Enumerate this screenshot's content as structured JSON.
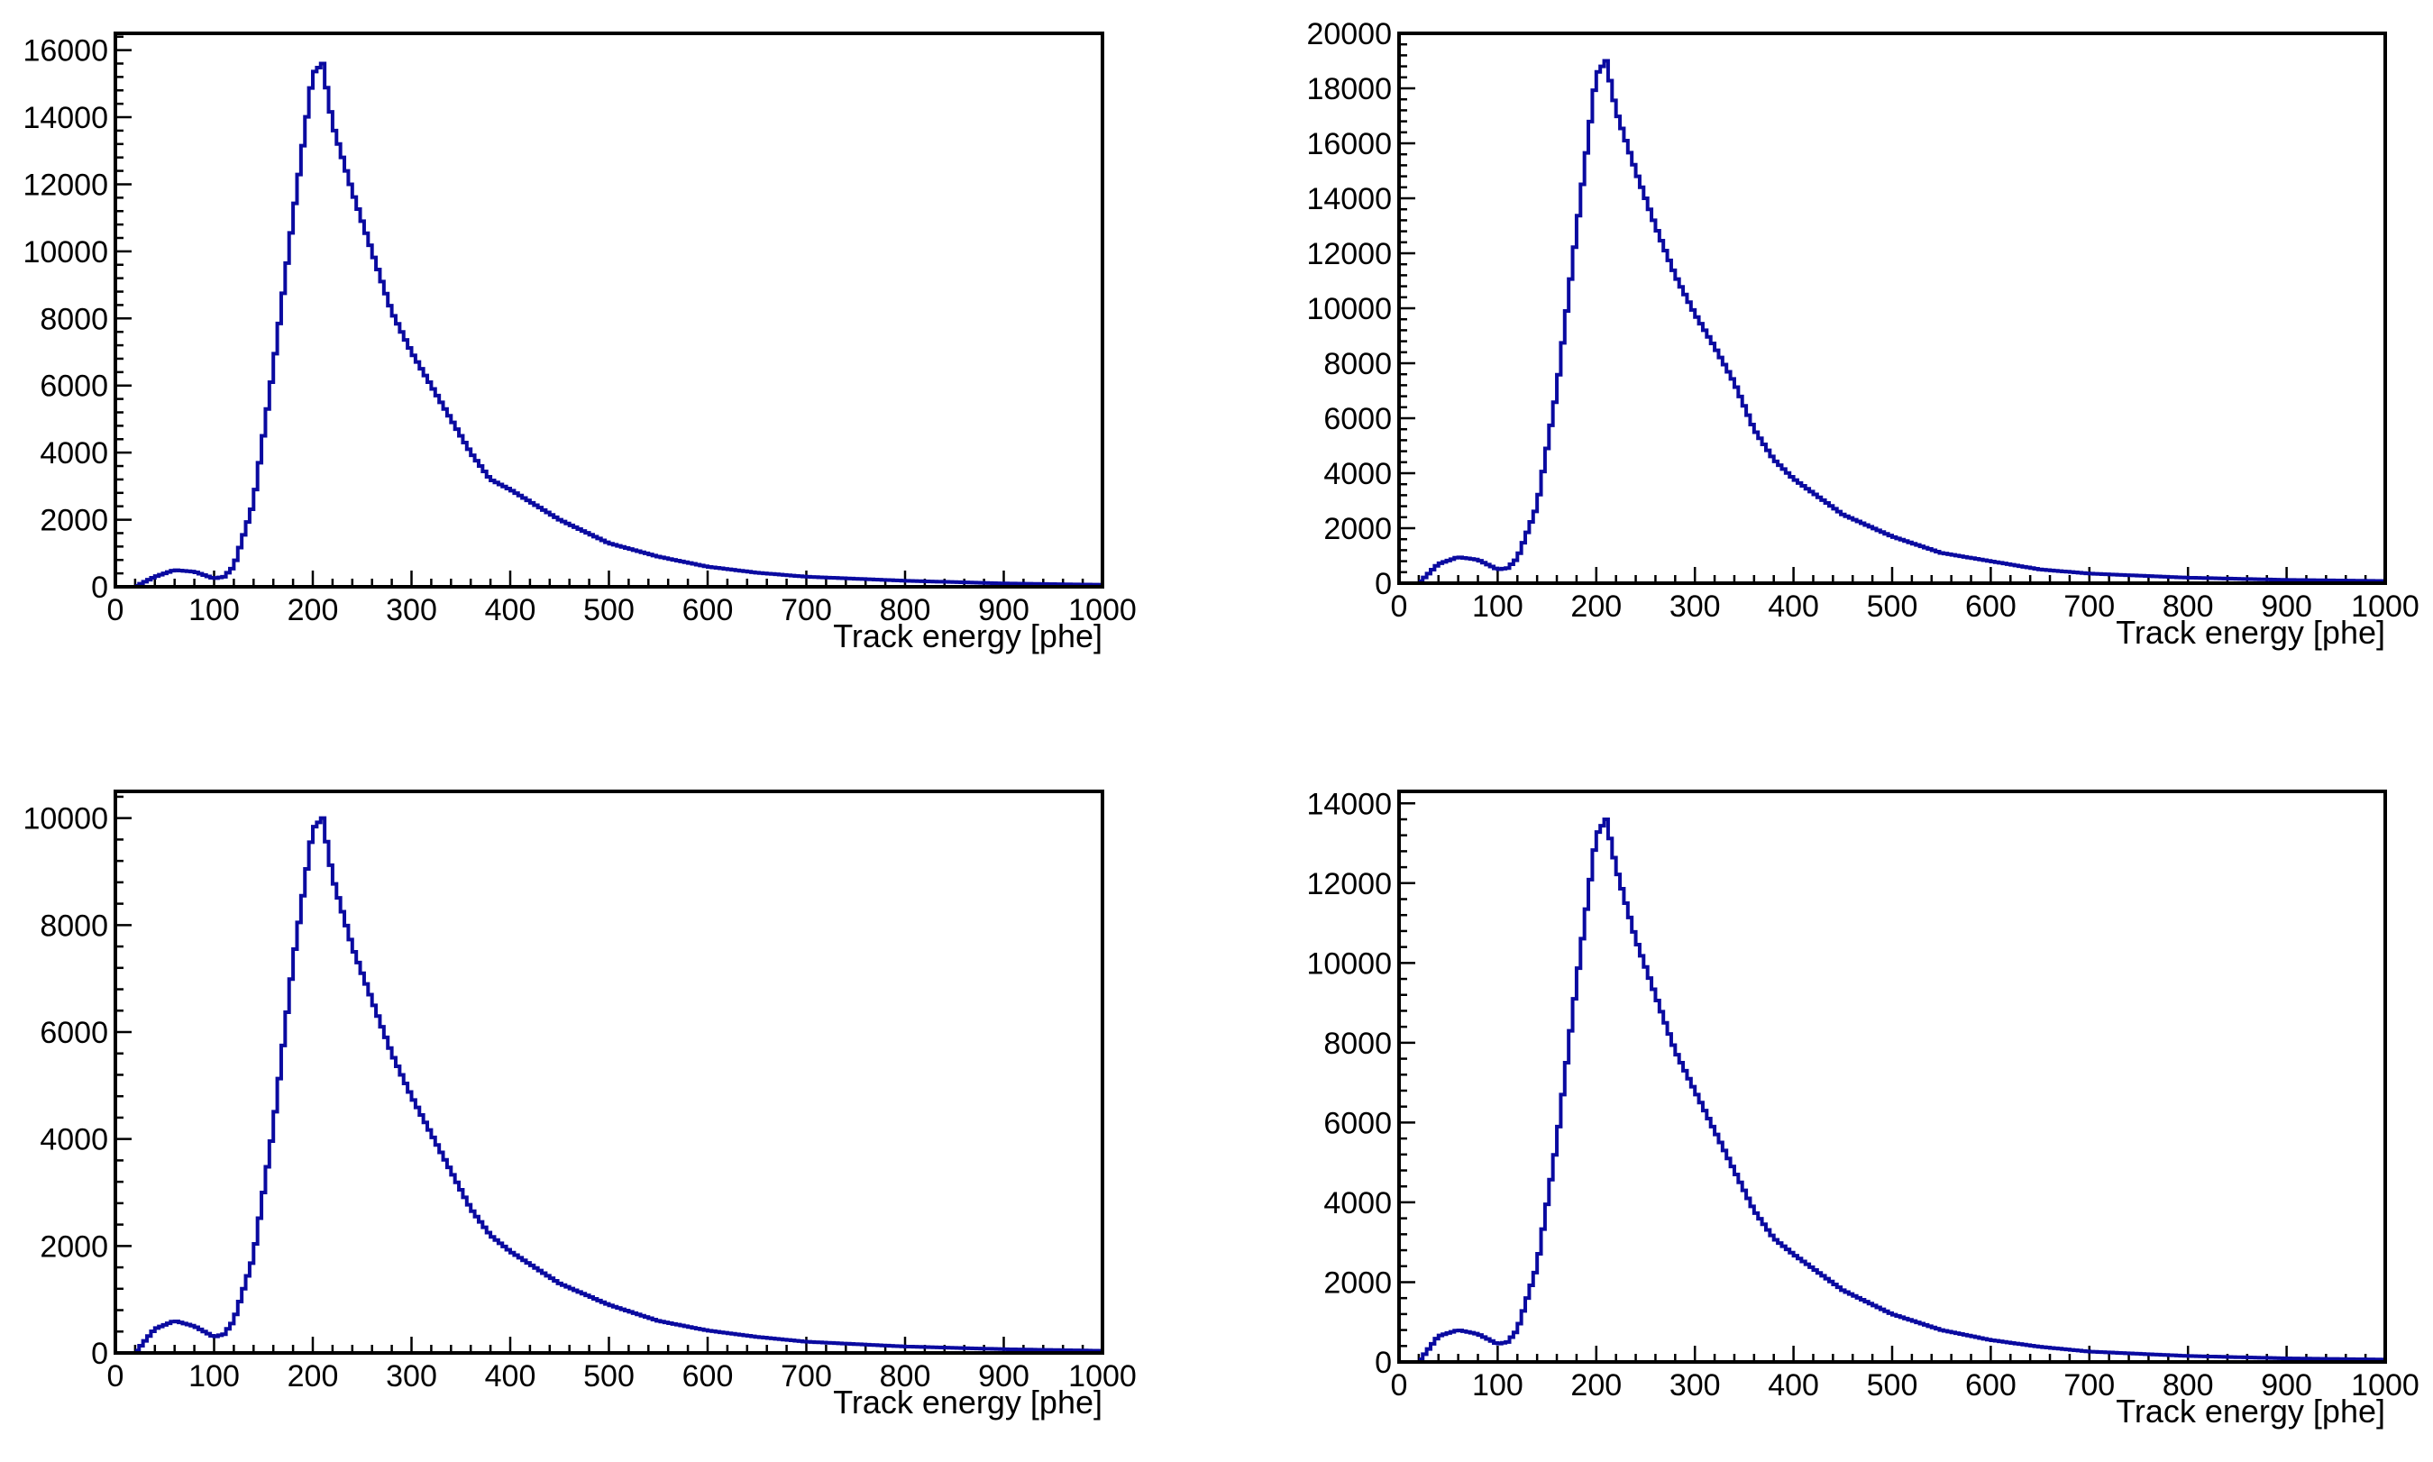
{
  "figure": {
    "background": "#ffffff",
    "line_color": "#0a0aa0",
    "frame_color": "#000000"
  },
  "chart_data": [
    {
      "type": "line",
      "style": "histogram",
      "title": "",
      "xlabel": "Track energy [phe]",
      "ylabel": "",
      "xlim": [
        0,
        1000
      ],
      "ylim": [
        0,
        16500
      ],
      "grid": false,
      "legend": "none",
      "xticks": [
        0,
        100,
        200,
        300,
        400,
        500,
        600,
        700,
        800,
        900,
        1000
      ],
      "yticks": [
        0,
        2000,
        4000,
        6000,
        8000,
        10000,
        12000,
        14000,
        16000
      ],
      "series": [
        {
          "x": [
            20,
            40,
            60,
            80,
            100,
            110,
            120,
            140,
            160,
            180,
            200,
            210,
            220,
            240,
            260,
            280,
            300,
            320,
            340,
            360,
            380,
            400,
            450,
            500,
            550,
            600,
            650,
            700,
            800,
            900,
            1000
          ],
          "y": [
            0,
            300,
            500,
            450,
            250,
            300,
            600,
            2500,
            6500,
            11000,
            15300,
            15600,
            13800,
            11800,
            10000,
            8200,
            7000,
            6000,
            5000,
            4000,
            3200,
            2900,
            2000,
            1300,
            900,
            600,
            420,
            300,
            180,
            100,
            60
          ]
        }
      ]
    },
    {
      "type": "line",
      "style": "histogram",
      "title": "",
      "xlabel": "Track energy [phe]",
      "ylabel": "",
      "xlim": [
        0,
        1000
      ],
      "ylim": [
        0,
        20000
      ],
      "grid": false,
      "legend": "none",
      "xticks": [
        0,
        100,
        200,
        300,
        400,
        500,
        600,
        700,
        800,
        900,
        1000
      ],
      "yticks": [
        0,
        2000,
        4000,
        6000,
        8000,
        10000,
        12000,
        14000,
        16000,
        18000,
        20000
      ],
      "series": [
        {
          "x": [
            20,
            40,
            60,
            80,
            100,
            110,
            120,
            140,
            160,
            180,
            200,
            210,
            220,
            240,
            260,
            280,
            300,
            320,
            340,
            360,
            380,
            400,
            450,
            500,
            550,
            600,
            650,
            700,
            800,
            900,
            1000
          ],
          "y": [
            0,
            700,
            950,
            850,
            500,
            550,
            900,
            2800,
            7000,
            12800,
            18500,
            19000,
            17200,
            15000,
            13000,
            11200,
            9800,
            8600,
            7300,
            5600,
            4500,
            3800,
            2500,
            1700,
            1100,
            800,
            500,
            350,
            200,
            120,
            80
          ]
        }
      ]
    },
    {
      "type": "line",
      "style": "histogram",
      "title": "",
      "xlabel": "Track energy [phe]",
      "ylabel": "",
      "xlim": [
        0,
        1000
      ],
      "ylim": [
        0,
        10500
      ],
      "grid": false,
      "legend": "none",
      "xticks": [
        0,
        100,
        200,
        300,
        400,
        500,
        600,
        700,
        800,
        900,
        1000
      ],
      "yticks": [
        0,
        2000,
        4000,
        6000,
        8000,
        10000
      ],
      "series": [
        {
          "x": [
            20,
            40,
            60,
            80,
            100,
            110,
            120,
            140,
            160,
            180,
            200,
            210,
            220,
            240,
            260,
            280,
            300,
            320,
            340,
            360,
            380,
            400,
            450,
            500,
            550,
            600,
            650,
            700,
            800,
            900,
            1000
          ],
          "y": [
            0,
            450,
            600,
            500,
            300,
            350,
            600,
            1800,
            4200,
            7300,
            9800,
            10000,
            8900,
            7600,
            6600,
            5600,
            4800,
            4100,
            3400,
            2700,
            2200,
            1900,
            1300,
            900,
            600,
            420,
            300,
            210,
            120,
            70,
            40
          ]
        }
      ]
    },
    {
      "type": "line",
      "style": "histogram",
      "title": "",
      "xlabel": "Track energy [phe]",
      "ylabel": "",
      "xlim": [
        0,
        1000
      ],
      "ylim": [
        0,
        14300
      ],
      "grid": false,
      "legend": "none",
      "xticks": [
        0,
        100,
        200,
        300,
        400,
        500,
        600,
        700,
        800,
        900,
        1000
      ],
      "yticks": [
        0,
        2000,
        4000,
        6000,
        8000,
        10000,
        12000,
        14000
      ],
      "series": [
        {
          "x": [
            20,
            40,
            60,
            80,
            100,
            110,
            120,
            140,
            160,
            180,
            200,
            210,
            220,
            240,
            260,
            280,
            300,
            320,
            340,
            360,
            380,
            400,
            450,
            500,
            550,
            600,
            650,
            700,
            800,
            900,
            1000
          ],
          "y": [
            0,
            650,
            800,
            700,
            450,
            500,
            800,
            2400,
            5500,
            9500,
            13200,
            13600,
            12400,
            10600,
            9200,
            7800,
            6800,
            5800,
            4800,
            3800,
            3100,
            2700,
            1800,
            1200,
            800,
            550,
            380,
            260,
            150,
            90,
            60
          ]
        }
      ]
    }
  ]
}
